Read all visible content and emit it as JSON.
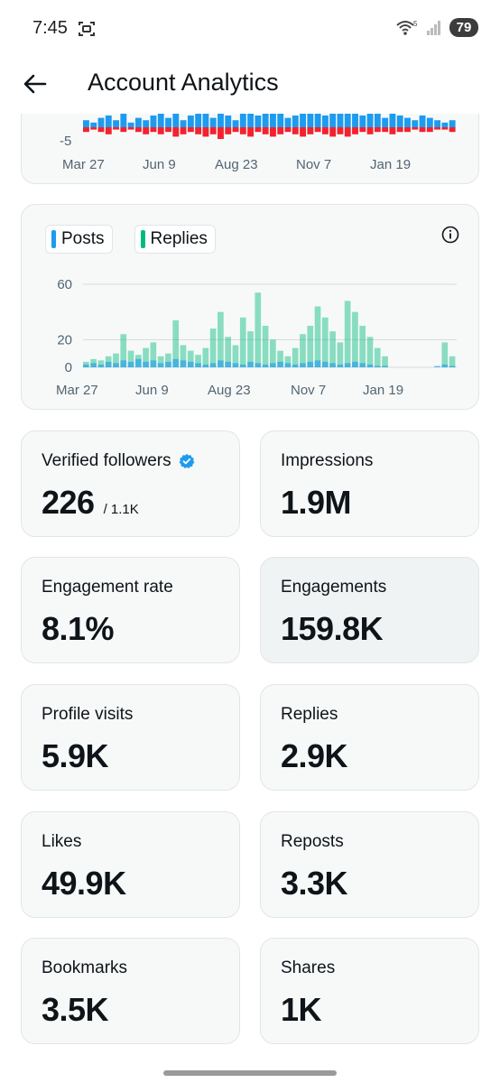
{
  "status": {
    "time": "7:45",
    "battery": "79",
    "network": "5"
  },
  "header": {
    "title": "Account Analytics"
  },
  "colors": {
    "posts": "#1d9bf0",
    "replies": "#00ba7c",
    "negative": "#f4212e",
    "verified": "#1d9bf0"
  },
  "chart_data": [
    {
      "type": "bar",
      "title": "",
      "x_tick_labels": [
        "Mar 27",
        "Jun 9",
        "Aug 23",
        "Nov 7",
        "Jan 19"
      ],
      "y_tick_labels": [
        "-5"
      ],
      "series": [
        {
          "color": "#1d9bf0",
          "values": [
            3,
            2,
            4,
            5,
            3,
            6,
            2,
            4,
            3,
            5,
            7,
            4,
            6,
            3,
            5,
            8,
            6,
            4,
            7,
            5,
            3,
            6,
            8,
            5,
            7,
            9,
            6,
            4,
            5,
            7,
            8,
            6,
            5,
            9,
            7,
            6,
            8,
            5,
            6,
            7,
            4,
            6,
            5,
            4,
            3,
            5,
            4,
            3,
            2,
            3
          ]
        },
        {
          "color": "#f4212e",
          "values": [
            -2,
            -1,
            -2,
            -3,
            -1,
            -2,
            -1,
            -2,
            -3,
            -2,
            -3,
            -2,
            -4,
            -3,
            -2,
            -3,
            -4,
            -3,
            -5,
            -3,
            -2,
            -3,
            -4,
            -2,
            -3,
            -4,
            -3,
            -2,
            -3,
            -4,
            -3,
            -2,
            -3,
            -4,
            -3,
            -4,
            -3,
            -2,
            -3,
            -2,
            -2,
            -3,
            -2,
            -2,
            -1,
            -2,
            -2,
            -1,
            -1,
            -2
          ]
        }
      ]
    },
    {
      "type": "bar",
      "title": "",
      "x_tick_labels": [
        "Mar 27",
        "Jun 9",
        "Aug 23",
        "Nov 7",
        "Jan 19"
      ],
      "y_tick_labels": [
        "60",
        "20",
        "0"
      ],
      "ylim": [
        0,
        60
      ],
      "legend": [
        "Posts",
        "Replies"
      ],
      "series": [
        {
          "name": "Posts",
          "color": "#1d9bf0",
          "values": [
            2,
            3,
            2,
            4,
            3,
            5,
            4,
            6,
            4,
            5,
            3,
            4,
            6,
            5,
            4,
            3,
            2,
            3,
            5,
            4,
            3,
            2,
            4,
            3,
            2,
            3,
            4,
            3,
            2,
            3,
            4,
            5,
            4,
            3,
            2,
            3,
            4,
            3,
            2,
            1,
            1,
            0,
            0,
            0,
            0,
            0,
            0,
            1,
            2,
            1
          ]
        },
        {
          "name": "Replies",
          "color": "#00ba7c",
          "values": [
            4,
            6,
            5,
            8,
            10,
            24,
            12,
            9,
            14,
            18,
            8,
            10,
            34,
            16,
            12,
            9,
            14,
            28,
            40,
            22,
            16,
            36,
            26,
            54,
            30,
            20,
            12,
            8,
            14,
            24,
            30,
            44,
            36,
            26,
            18,
            48,
            40,
            30,
            22,
            14,
            8,
            0,
            0,
            0,
            0,
            0,
            0,
            0,
            18,
            8
          ]
        }
      ]
    }
  ],
  "stats": [
    {
      "label": "Verified followers",
      "value": "226",
      "sub": "/ 1.1K"
    },
    {
      "label": "Impressions",
      "value": "1.9M"
    },
    {
      "label": "Engagement rate",
      "value": "8.1%"
    },
    {
      "label": "Engagements",
      "value": "159.8K"
    },
    {
      "label": "Profile visits",
      "value": "5.9K"
    },
    {
      "label": "Replies",
      "value": "2.9K"
    },
    {
      "label": "Likes",
      "value": "49.9K"
    },
    {
      "label": "Reposts",
      "value": "3.3K"
    },
    {
      "label": "Bookmarks",
      "value": "3.5K"
    },
    {
      "label": "Shares",
      "value": "1K"
    }
  ]
}
